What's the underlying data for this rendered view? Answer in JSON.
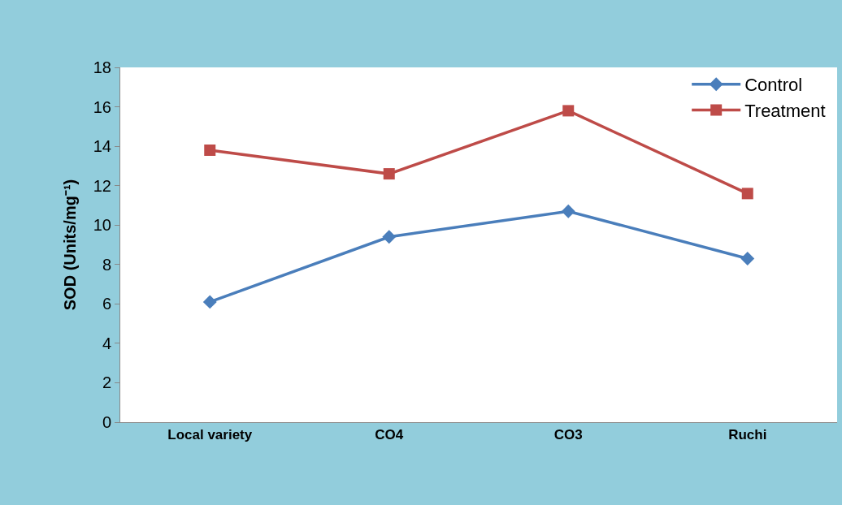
{
  "chart_data": {
    "type": "line",
    "ylabel": "SOD (Units/mg⁻¹)",
    "categories": [
      "Local variety",
      "CO4",
      "CO3",
      "Ruchi"
    ],
    "series": [
      {
        "name": "Control",
        "color": "#4a7ebb",
        "marker": "diamond",
        "values": [
          6.1,
          9.4,
          10.7,
          8.3
        ]
      },
      {
        "name": "Treatment",
        "color": "#be4b48",
        "marker": "square",
        "values": [
          13.8,
          12.6,
          15.8,
          11.6
        ]
      }
    ],
    "ylim": [
      0,
      18
    ],
    "yticks": [
      0,
      2,
      4,
      6,
      8,
      10,
      12,
      14,
      16,
      18
    ],
    "grid": false,
    "legend": "top right",
    "line_style": "solid"
  }
}
